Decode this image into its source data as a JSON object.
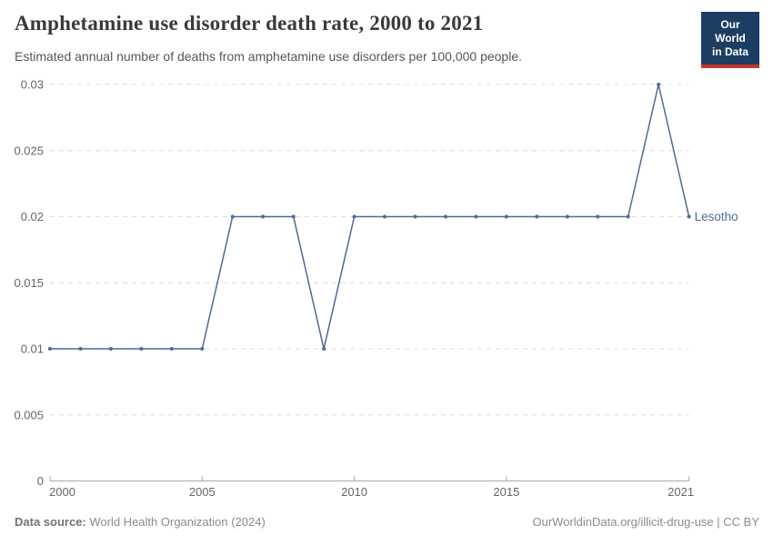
{
  "header": {
    "title": "Amphetamine use disorder death rate, 2000 to 2021",
    "subtitle": "Estimated annual number of deaths from amphetamine use disorders per 100,000 people."
  },
  "logo": {
    "line1": "Our World",
    "line2": "in Data",
    "bg_color": "#1d3d63",
    "stripe_color": "#c0392b"
  },
  "chart_data": {
    "type": "line",
    "title": "Amphetamine use disorder death rate, 2000 to 2021",
    "xlabel": "",
    "ylabel": "",
    "xlim": [
      2000,
      2021
    ],
    "ylim": [
      0,
      0.03
    ],
    "grid": "dashed horizontal",
    "legend_position": "end-of-line label",
    "x": [
      2000,
      2001,
      2002,
      2003,
      2004,
      2005,
      2006,
      2007,
      2008,
      2009,
      2010,
      2011,
      2012,
      2013,
      2014,
      2015,
      2016,
      2017,
      2018,
      2019,
      2020,
      2021
    ],
    "series": [
      {
        "name": "Lesotho",
        "color": "#4c6a9c",
        "values": [
          0.01,
          0.01,
          0.01,
          0.01,
          0.01,
          0.01,
          0.02,
          0.02,
          0.02,
          0.01,
          0.02,
          0.02,
          0.02,
          0.02,
          0.02,
          0.02,
          0.02,
          0.02,
          0.02,
          0.02,
          0.03,
          0.02
        ]
      }
    ],
    "yticks": [
      {
        "v": 0,
        "label": "0"
      },
      {
        "v": 0.005,
        "label": "0.005"
      },
      {
        "v": 0.01,
        "label": "0.01"
      },
      {
        "v": 0.015,
        "label": "0.015"
      },
      {
        "v": 0.02,
        "label": "0.02"
      },
      {
        "v": 0.025,
        "label": "0.025"
      },
      {
        "v": 0.03,
        "label": "0.03"
      }
    ],
    "xticks": [
      {
        "v": 2000,
        "label": "2000"
      },
      {
        "v": 2005,
        "label": "2005"
      },
      {
        "v": 2010,
        "label": "2010"
      },
      {
        "v": 2015,
        "label": "2015"
      },
      {
        "v": 2021,
        "label": "2021"
      }
    ],
    "colors": {
      "gridline": "#dcdcdc",
      "axis": "#a8a8a8",
      "tick_label": "#666666"
    }
  },
  "footer": {
    "datasource_label": "Data source:",
    "datasource_value": " World Health Organization (2024)",
    "credit": "OurWorldinData.org/illicit-drug-use | CC BY"
  }
}
